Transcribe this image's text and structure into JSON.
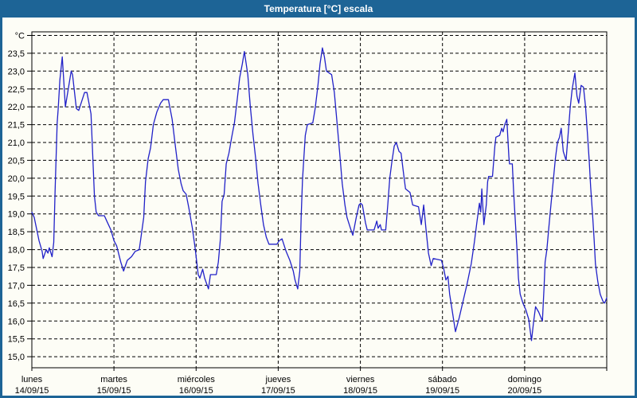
{
  "window": {
    "title": "Temperatura [°C] escala"
  },
  "colors": {
    "frame": "#1D6496",
    "titlebar_bg": "#1D6496",
    "titlebar_text": "#FFFFFF",
    "plot_bg": "#FDFDF6",
    "grid": "#000000",
    "axis": "#000000",
    "line": "#2121C8"
  },
  "chart_data": {
    "type": "line",
    "title": "Temperatura [°C] escala",
    "xlabel": "",
    "ylabel": "°C",
    "grid": "dashed",
    "legend_position": "none",
    "ylim": [
      14.69,
      24.1
    ],
    "x_hours_range": [
      0,
      168
    ],
    "y_ticks": [
      {
        "v": 24.0,
        "label": "°C"
      },
      {
        "v": 23.5,
        "label": "23,5"
      },
      {
        "v": 23.0,
        "label": "23,0"
      },
      {
        "v": 22.5,
        "label": "22,5"
      },
      {
        "v": 22.0,
        "label": "22,0"
      },
      {
        "v": 21.5,
        "label": "21,5"
      },
      {
        "v": 21.0,
        "label": "21,0"
      },
      {
        "v": 20.5,
        "label": "20,5"
      },
      {
        "v": 20.0,
        "label": "20,0"
      },
      {
        "v": 19.5,
        "label": "19,5"
      },
      {
        "v": 19.0,
        "label": "19,0"
      },
      {
        "v": 18.5,
        "label": "18,5"
      },
      {
        "v": 18.0,
        "label": "18,0"
      },
      {
        "v": 17.5,
        "label": "17,5"
      },
      {
        "v": 17.0,
        "label": "17,0"
      },
      {
        "v": 16.5,
        "label": "16,5"
      },
      {
        "v": 16.0,
        "label": "16,0"
      },
      {
        "v": 15.5,
        "label": "15,5"
      },
      {
        "v": 15.0,
        "label": "15,0"
      }
    ],
    "x_days": [
      {
        "name": "lunes",
        "date": "14/09/15"
      },
      {
        "name": "martes",
        "date": "15/09/15"
      },
      {
        "name": "miércoles",
        "date": "16/09/15"
      },
      {
        "name": "jueves",
        "date": "17/09/15"
      },
      {
        "name": "viernes",
        "date": "18/09/15"
      },
      {
        "name": "sábado",
        "date": "19/09/15"
      },
      {
        "name": "domingo",
        "date": "20/09/15"
      }
    ],
    "series": [
      {
        "name": "Temperatura",
        "points": [
          [
            0,
            19.05
          ],
          [
            0.7,
            18.9
          ],
          [
            2.1,
            18.25
          ],
          [
            3,
            17.95
          ],
          [
            3.3,
            17.75
          ],
          [
            4.2,
            18
          ],
          [
            4.7,
            17.9
          ],
          [
            5.1,
            18.05
          ],
          [
            5.9,
            17.8
          ],
          [
            6.4,
            18.2
          ],
          [
            6.8,
            19.65
          ],
          [
            7.2,
            20.9
          ],
          [
            7.4,
            21.55
          ],
          [
            7.7,
            21.95
          ],
          [
            8.2,
            22.75
          ],
          [
            8.9,
            23.4
          ],
          [
            9.8,
            22
          ],
          [
            11.5,
            23
          ],
          [
            11.9,
            22.9
          ],
          [
            13,
            21.95
          ],
          [
            13.7,
            21.9
          ],
          [
            15.4,
            22.4
          ],
          [
            16.1,
            22.4
          ],
          [
            17.3,
            21.8
          ],
          [
            17.9,
            20.4
          ],
          [
            18.3,
            19.5
          ],
          [
            18.8,
            19.05
          ],
          [
            19.5,
            18.95
          ],
          [
            21.2,
            18.95
          ],
          [
            21.9,
            18.8
          ],
          [
            23.1,
            18.55
          ],
          [
            24,
            18.25
          ],
          [
            24.8,
            18.1
          ],
          [
            26,
            17.65
          ],
          [
            26.8,
            17.4
          ],
          [
            27.9,
            17.7
          ],
          [
            29.1,
            17.8
          ],
          [
            30.2,
            17.95
          ],
          [
            31.4,
            18
          ],
          [
            32.7,
            18.9
          ],
          [
            33.2,
            19.9
          ],
          [
            34,
            20.55
          ],
          [
            34.7,
            20.85
          ],
          [
            35.5,
            21.5
          ],
          [
            36.5,
            21.85
          ],
          [
            37.6,
            22.1
          ],
          [
            38.4,
            22.2
          ],
          [
            39.9,
            22.2
          ],
          [
            41,
            21.65
          ],
          [
            42,
            20.85
          ],
          [
            42.8,
            20.25
          ],
          [
            43.6,
            19.85
          ],
          [
            44.2,
            19.65
          ],
          [
            45.1,
            19.55
          ],
          [
            45.9,
            19.15
          ],
          [
            46.9,
            18.6
          ],
          [
            47.7,
            18.05
          ],
          [
            48.2,
            17.65
          ],
          [
            48.6,
            17.3
          ],
          [
            49.1,
            17.2
          ],
          [
            49.9,
            17.45
          ],
          [
            50.5,
            17.2
          ],
          [
            51.6,
            16.9
          ],
          [
            52.2,
            17.3
          ],
          [
            53.9,
            17.3
          ],
          [
            54.5,
            17.65
          ],
          [
            55.1,
            18.3
          ],
          [
            55.6,
            19.35
          ],
          [
            56.2,
            19.55
          ],
          [
            56.8,
            20.4
          ],
          [
            57.6,
            20.7
          ],
          [
            58.4,
            21.15
          ],
          [
            59.2,
            21.55
          ],
          [
            60,
            22.2
          ],
          [
            60.7,
            22.8
          ],
          [
            61.5,
            23.2
          ],
          [
            62.1,
            23.55
          ],
          [
            63.1,
            22.9
          ],
          [
            63.8,
            22.05
          ],
          [
            64.6,
            21.25
          ],
          [
            65.4,
            20.55
          ],
          [
            66.1,
            19.85
          ],
          [
            66.9,
            19.25
          ],
          [
            67.7,
            18.7
          ],
          [
            68.5,
            18.35
          ],
          [
            69.3,
            18.15
          ],
          [
            71.6,
            18.15
          ],
          [
            72.3,
            18.25
          ],
          [
            73.1,
            18.3
          ],
          [
            74.3,
            17.95
          ],
          [
            75.4,
            17.7
          ],
          [
            76.4,
            17.4
          ],
          [
            76.9,
            17.15
          ],
          [
            77.7,
            16.9
          ],
          [
            78.3,
            17.4
          ],
          [
            78.7,
            18.9
          ],
          [
            79.1,
            19.95
          ],
          [
            79.5,
            20.6
          ],
          [
            79.9,
            21.2
          ],
          [
            80.5,
            21.5
          ],
          [
            82.1,
            21.55
          ],
          [
            82.8,
            21.95
          ],
          [
            83.6,
            22.6
          ],
          [
            84.2,
            23.2
          ],
          [
            84.9,
            23.65
          ],
          [
            85.5,
            23.4
          ],
          [
            86.1,
            23
          ],
          [
            87.6,
            22.9
          ],
          [
            88.4,
            22.4
          ],
          [
            89.2,
            21.55
          ],
          [
            90,
            20.65
          ],
          [
            90.7,
            19.85
          ],
          [
            91.5,
            19.25
          ],
          [
            92.1,
            18.9
          ],
          [
            93.1,
            18.6
          ],
          [
            93.8,
            18.4
          ],
          [
            94.8,
            18.9
          ],
          [
            95.6,
            19.25
          ],
          [
            96.1,
            19.3
          ],
          [
            96.6,
            19.25
          ],
          [
            97.5,
            18.75
          ],
          [
            98,
            18.55
          ],
          [
            100,
            18.55
          ],
          [
            100.8,
            18.8
          ],
          [
            101.2,
            18.6
          ],
          [
            101.8,
            18.7
          ],
          [
            102.2,
            18.55
          ],
          [
            103.4,
            18.55
          ],
          [
            104,
            19.25
          ],
          [
            104.6,
            20
          ],
          [
            105.2,
            20.45
          ],
          [
            105.9,
            20.9
          ],
          [
            106.5,
            21
          ],
          [
            107.3,
            20.75
          ],
          [
            107.9,
            20.7
          ],
          [
            108.6,
            20.15
          ],
          [
            109.2,
            19.7
          ],
          [
            110.5,
            19.6
          ],
          [
            111.3,
            19.25
          ],
          [
            113,
            19.2
          ],
          [
            113.8,
            18.7
          ],
          [
            114.5,
            19.25
          ],
          [
            115.2,
            18.55
          ],
          [
            115.9,
            17.9
          ],
          [
            116.7,
            17.55
          ],
          [
            117.3,
            17.75
          ],
          [
            119.7,
            17.7
          ],
          [
            120.4,
            17.45
          ],
          [
            121,
            17.15
          ],
          [
            121.6,
            17.25
          ],
          [
            122.1,
            16.75
          ],
          [
            122.9,
            16.25
          ],
          [
            123.8,
            15.7
          ],
          [
            124.9,
            16.1
          ],
          [
            126,
            16.55
          ],
          [
            127.2,
            17.05
          ],
          [
            128.4,
            17.6
          ],
          [
            129.3,
            18.2
          ],
          [
            130.1,
            18.8
          ],
          [
            130.8,
            19.3
          ],
          [
            131.2,
            19.05
          ],
          [
            131.5,
            19.7
          ],
          [
            132.1,
            18.7
          ],
          [
            132.8,
            19.25
          ],
          [
            133.2,
            19.9
          ],
          [
            133.5,
            20.05
          ],
          [
            134.6,
            20.05
          ],
          [
            135.3,
            20.9
          ],
          [
            135.6,
            21.15
          ],
          [
            136.7,
            21.2
          ],
          [
            137.3,
            21.4
          ],
          [
            137.7,
            21.3
          ],
          [
            138.2,
            21.5
          ],
          [
            138.8,
            21.65
          ],
          [
            139.4,
            20.6
          ],
          [
            139.6,
            20.4
          ],
          [
            140.4,
            20.4
          ],
          [
            140.8,
            19.6
          ],
          [
            141.3,
            18.75
          ],
          [
            141.8,
            17.95
          ],
          [
            142.2,
            17.2
          ],
          [
            142.7,
            16.75
          ],
          [
            143.5,
            16.5
          ],
          [
            144.4,
            16.3
          ],
          [
            145.2,
            16.05
          ],
          [
            146,
            15.45
          ],
          [
            146.6,
            15.95
          ],
          [
            147.2,
            16.4
          ],
          [
            148.1,
            16.25
          ],
          [
            149.2,
            16
          ],
          [
            149.7,
            17
          ],
          [
            150,
            17.65
          ],
          [
            150.5,
            18
          ],
          [
            151.1,
            18.65
          ],
          [
            151.7,
            19.25
          ],
          [
            152.3,
            19.85
          ],
          [
            153,
            20.55
          ],
          [
            153.6,
            21
          ],
          [
            154.2,
            21.15
          ],
          [
            154.7,
            21.4
          ],
          [
            155.3,
            20.75
          ],
          [
            156.1,
            20.5
          ],
          [
            156.7,
            21.2
          ],
          [
            157.3,
            21.95
          ],
          [
            157.9,
            22.5
          ],
          [
            158.7,
            22.95
          ],
          [
            159.3,
            22.3
          ],
          [
            159.8,
            22.1
          ],
          [
            160.5,
            22.6
          ],
          [
            161.2,
            22.55
          ],
          [
            161.8,
            22
          ],
          [
            162.4,
            21.2
          ],
          [
            162.9,
            20.45
          ],
          [
            163.3,
            19.75
          ],
          [
            163.8,
            19.05
          ],
          [
            164.3,
            18.3
          ],
          [
            164.7,
            17.6
          ],
          [
            165.4,
            17.1
          ],
          [
            166.1,
            16.75
          ],
          [
            166.9,
            16.55
          ],
          [
            167.4,
            16.5
          ],
          [
            168,
            16.65
          ]
        ]
      }
    ]
  }
}
